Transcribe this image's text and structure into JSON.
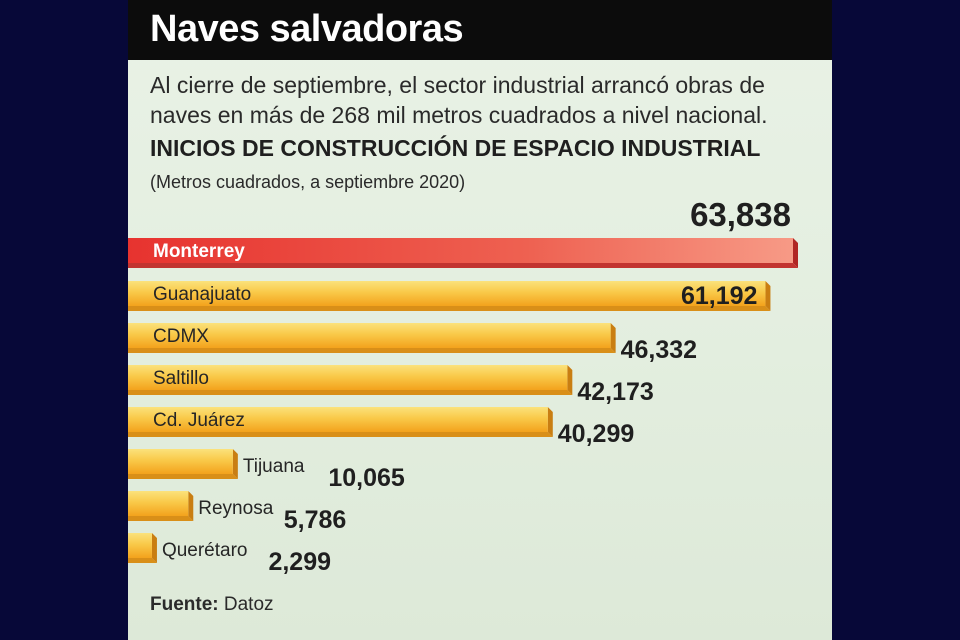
{
  "header": {
    "title": "Naves salvadoras"
  },
  "description": "Al cierre de septiembre, el sector industrial arrancó obras de naves en más de 268 mil metros cuadrados a nivel nacional.",
  "source": {
    "label": "Fuente:",
    "value": "Datoz"
  },
  "chart_data": {
    "type": "bar",
    "orientation": "horizontal",
    "title": "INICIOS DE CONSTRUCCIÓN DE ESPACIO INDUSTRIAL",
    "subtitle": "(Metros cuadrados, a septiembre 2020)",
    "categories": [
      "Monterrey",
      "Guanajuato",
      "CDMX",
      "Saltillo",
      "Cd. Juárez",
      "Tijuana",
      "Reynosa",
      "Querétaro"
    ],
    "values": [
      63838,
      61192,
      46332,
      42173,
      40299,
      10065,
      5786,
      2299
    ],
    "value_labels": [
      "63,838",
      "61,192",
      "46,332",
      "42,173",
      "40,299",
      "10,065",
      "5,786",
      "2,299"
    ],
    "highlight_color": "#e8423c",
    "bar_color": "#f6a623",
    "xlim": [
      0,
      63838
    ]
  }
}
